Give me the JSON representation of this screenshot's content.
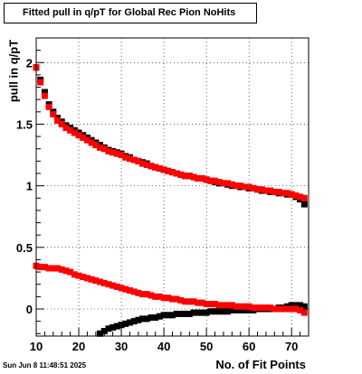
{
  "chart_data": {
    "type": "scatter",
    "title": "Fitted pull in q/pT for Global Rec Pion NoHits",
    "xlabel": "No. of Fit Points",
    "ylabel": "pull in q/pT",
    "xlim": [
      10,
      74
    ],
    "ylim": [
      -0.22,
      2.2
    ],
    "x_ticks": [
      10,
      20,
      30,
      40,
      50,
      60,
      70
    ],
    "y_ticks": [
      0,
      0.5,
      1,
      1.5,
      2
    ],
    "y_tick_labels": [
      "0",
      "0.5",
      "1",
      "1.5",
      "2"
    ],
    "grid": true,
    "series": [
      {
        "name": "",
        "color": "#000000",
        "marker": "square",
        "x": [
          10,
          11,
          12,
          13,
          14,
          15,
          16,
          17,
          18,
          19,
          20,
          21,
          22,
          23,
          24,
          25,
          26,
          27,
          28,
          29,
          30,
          31,
          32,
          33,
          34,
          35,
          36,
          37,
          38,
          39,
          40,
          41,
          42,
          43,
          44,
          45,
          46,
          47,
          48,
          49,
          50,
          51,
          52,
          53,
          54,
          55,
          56,
          57,
          58,
          59,
          60,
          61,
          62,
          63,
          64,
          65,
          66,
          67,
          68,
          69,
          70,
          71,
          72,
          73
        ],
        "y": [
          1.96,
          1.86,
          1.76,
          1.66,
          1.6,
          1.55,
          1.52,
          1.49,
          1.47,
          1.45,
          1.43,
          1.41,
          1.39,
          1.37,
          1.35,
          1.33,
          1.31,
          1.29,
          1.28,
          1.27,
          1.26,
          1.24,
          1.23,
          1.21,
          1.2,
          1.19,
          1.18,
          1.16,
          1.15,
          1.14,
          1.13,
          1.12,
          1.11,
          1.1,
          1.09,
          1.08,
          1.08,
          1.07,
          1.06,
          1.06,
          1.05,
          1.04,
          1.03,
          1.02,
          1.02,
          1.01,
          1.0,
          1.0,
          0.99,
          0.99,
          0.98,
          0.98,
          0.97,
          0.96,
          0.96,
          0.95,
          0.95,
          0.94,
          0.94,
          0.93,
          0.93,
          0.91,
          0.89,
          0.85
        ]
      },
      {
        "name": "",
        "color": "#000000",
        "marker": "square",
        "x": [
          25,
          26,
          27,
          28,
          29,
          30,
          31,
          32,
          33,
          34,
          35,
          36,
          37,
          38,
          39,
          40,
          41,
          42,
          43,
          44,
          45,
          46,
          47,
          48,
          49,
          50,
          51,
          52,
          53,
          54,
          55,
          56,
          57,
          58,
          59,
          60,
          61,
          62,
          63,
          64,
          65,
          66,
          67,
          68,
          69,
          70,
          71,
          72,
          73
        ],
        "y": [
          -0.2,
          -0.18,
          -0.16,
          -0.15,
          -0.14,
          -0.13,
          -0.12,
          -0.11,
          -0.1,
          -0.09,
          -0.08,
          -0.08,
          -0.07,
          -0.07,
          -0.06,
          -0.05,
          -0.05,
          -0.05,
          -0.04,
          -0.04,
          -0.04,
          -0.04,
          -0.03,
          -0.03,
          -0.03,
          -0.03,
          -0.02,
          -0.02,
          -0.02,
          -0.02,
          -0.02,
          -0.01,
          -0.01,
          -0.01,
          -0.01,
          -0.01,
          -0.01,
          0.0,
          0.0,
          0.0,
          0.0,
          0.0,
          0.01,
          0.01,
          0.02,
          0.03,
          0.03,
          0.03,
          0.02
        ]
      },
      {
        "name": "",
        "color": "#ff0000",
        "marker": "square",
        "x": [
          10,
          11,
          12,
          13,
          14,
          15,
          16,
          17,
          18,
          19,
          20,
          21,
          22,
          23,
          24,
          25,
          26,
          27,
          28,
          29,
          30,
          31,
          32,
          33,
          34,
          35,
          36,
          37,
          38,
          39,
          40,
          41,
          42,
          43,
          44,
          45,
          46,
          47,
          48,
          49,
          50,
          51,
          52,
          53,
          54,
          55,
          56,
          57,
          58,
          59,
          60,
          61,
          62,
          63,
          64,
          65,
          66,
          67,
          68,
          69,
          70,
          71,
          72,
          73
        ],
        "y": [
          1.96,
          1.84,
          1.73,
          1.64,
          1.58,
          1.53,
          1.5,
          1.47,
          1.45,
          1.43,
          1.41,
          1.39,
          1.37,
          1.35,
          1.33,
          1.31,
          1.3,
          1.28,
          1.27,
          1.26,
          1.25,
          1.23,
          1.22,
          1.21,
          1.2,
          1.18,
          1.17,
          1.16,
          1.15,
          1.14,
          1.13,
          1.12,
          1.11,
          1.1,
          1.09,
          1.08,
          1.08,
          1.07,
          1.06,
          1.06,
          1.05,
          1.04,
          1.04,
          1.03,
          1.02,
          1.02,
          1.01,
          1.0,
          1.0,
          0.99,
          0.99,
          0.98,
          0.97,
          0.97,
          0.96,
          0.96,
          0.95,
          0.95,
          0.94,
          0.94,
          0.93,
          0.92,
          0.91,
          0.9
        ]
      },
      {
        "name": "",
        "color": "#ff0000",
        "marker": "square",
        "x": [
          10,
          11,
          12,
          13,
          14,
          15,
          16,
          17,
          18,
          19,
          20,
          21,
          22,
          23,
          24,
          25,
          26,
          27,
          28,
          29,
          30,
          31,
          32,
          33,
          34,
          35,
          36,
          37,
          38,
          39,
          40,
          41,
          42,
          43,
          44,
          45,
          46,
          47,
          48,
          49,
          50,
          51,
          52,
          53,
          54,
          55,
          56,
          57,
          58,
          59,
          60,
          61,
          62,
          63,
          64,
          65,
          66,
          67,
          68,
          69,
          70,
          71,
          72,
          73
        ],
        "y": [
          0.35,
          0.34,
          0.34,
          0.33,
          0.33,
          0.33,
          0.32,
          0.31,
          0.3,
          0.28,
          0.27,
          0.26,
          0.25,
          0.24,
          0.23,
          0.22,
          0.21,
          0.2,
          0.19,
          0.18,
          0.17,
          0.16,
          0.15,
          0.14,
          0.13,
          0.12,
          0.12,
          0.11,
          0.1,
          0.1,
          0.09,
          0.09,
          0.08,
          0.08,
          0.07,
          0.06,
          0.06,
          0.06,
          0.05,
          0.05,
          0.04,
          0.04,
          0.04,
          0.03,
          0.03,
          0.03,
          0.03,
          0.02,
          0.02,
          0.02,
          0.02,
          0.01,
          0.01,
          0.01,
          0.01,
          0.01,
          0.0,
          0.0,
          0.0,
          0.0,
          0.0,
          0.0,
          -0.01,
          -0.03
        ]
      }
    ]
  },
  "footer": {
    "timestamp": "Sun Jun  8 11:48:51 2025"
  }
}
